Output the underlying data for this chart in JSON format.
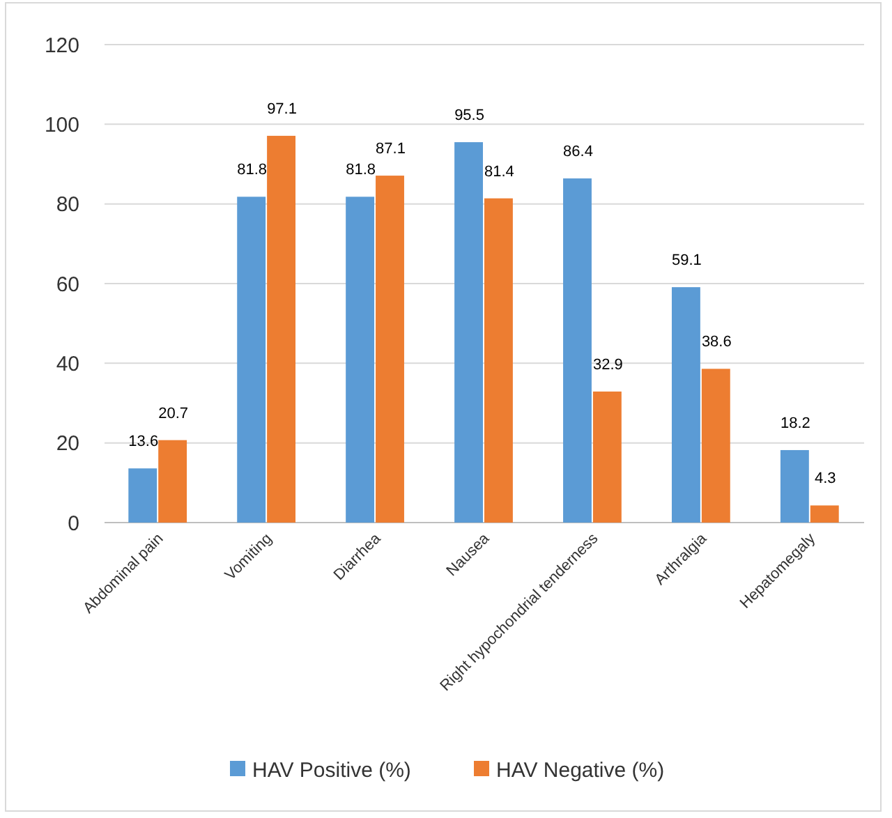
{
  "chart_data": {
    "type": "bar",
    "categories": [
      "Abdominal pain",
      "Vomiting",
      "Diarrhea",
      "Nausea",
      "Right hypochondrial tenderness",
      "Arthralgia",
      "Hepatomegaly"
    ],
    "series": [
      {
        "name": "HAV Positive (%)",
        "color": "#5b9bd5",
        "values": [
          13.6,
          81.8,
          81.8,
          95.5,
          86.4,
          59.1,
          18.2
        ]
      },
      {
        "name": "HAV Negative (%)",
        "color": "#ed7d31",
        "values": [
          20.7,
          97.1,
          87.1,
          81.4,
          32.9,
          38.6,
          4.3
        ]
      }
    ],
    "ylim": [
      0,
      120
    ],
    "yticks": [
      0,
      20,
      40,
      60,
      80,
      100,
      120
    ],
    "grid": "y",
    "legend": "bottom",
    "data_labels": true
  }
}
